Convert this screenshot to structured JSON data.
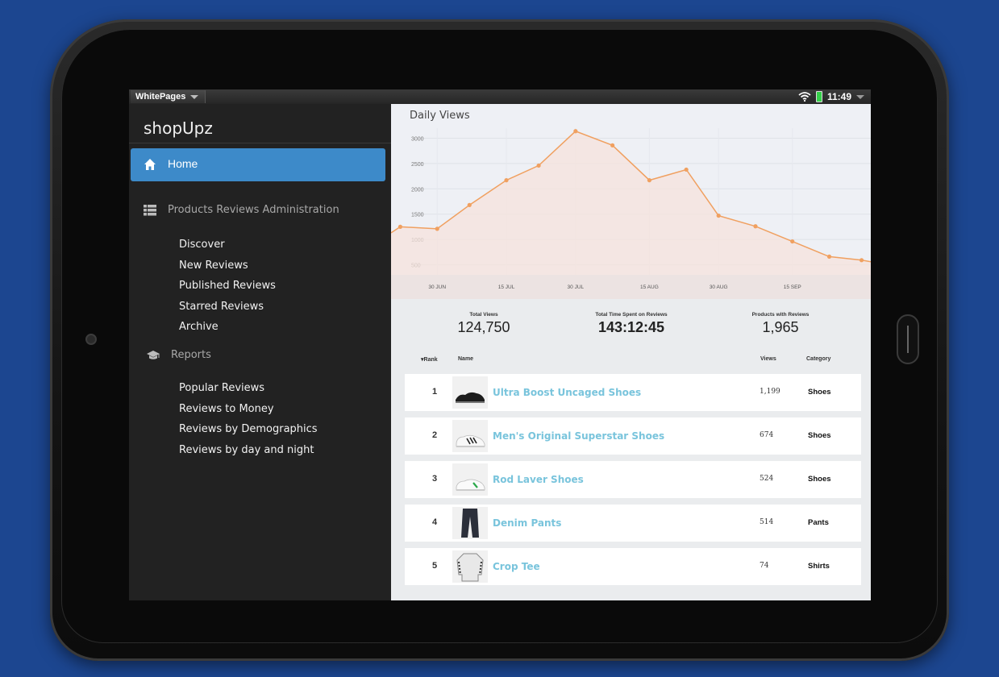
{
  "statusbar": {
    "app_name": "WhitePages",
    "time": "11:49"
  },
  "sidebar": {
    "brand": "shopUpz",
    "home_label": "Home",
    "sections": [
      {
        "title": "Products Reviews Administration",
        "icon": "list-icon",
        "items": [
          "Discover",
          "New Reviews",
          "Published Reviews",
          "Starred Reviews",
          "Archive"
        ]
      },
      {
        "title": "Reports",
        "icon": "graduation-cap-icon",
        "items": [
          "Popular Reviews",
          "Reviews to Money",
          "Reviews by Demographics",
          "Reviews by day and night"
        ]
      }
    ]
  },
  "chart_data": {
    "type": "area",
    "title": "Daily Views",
    "xlabel": "",
    "ylabel": "",
    "x_ticks": [
      "30 JUN",
      "15 JUL",
      "30 JUL",
      "15 AUG",
      "30 AUG",
      "15 SEP"
    ],
    "y_ticks": [
      500,
      1000,
      1500,
      2000,
      2500,
      3000
    ],
    "ylim": [
      300,
      3200
    ],
    "x": [
      "2015-06-22",
      "2015-06-30",
      "2015-07-07",
      "2015-07-15",
      "2015-07-22",
      "2015-07-30",
      "2015-08-07",
      "2015-08-15",
      "2015-08-23",
      "2015-08-30",
      "2015-09-07",
      "2015-09-15",
      "2015-09-23",
      "2015-09-30"
    ],
    "values": [
      1250,
      1210,
      1680,
      2170,
      2460,
      3140,
      2860,
      2170,
      2380,
      1470,
      1260,
      960,
      660,
      590
    ],
    "grid": true,
    "color": "#f0a060"
  },
  "stats": {
    "total_views_label": "Total Views",
    "total_views": "124,750",
    "time_label": "Total Time Spent on Reviews",
    "time_value": "143:12:45",
    "products_label": "Products with Reviews",
    "products_value": "1,965"
  },
  "table": {
    "headers": {
      "rank": "Rank",
      "name": "Name",
      "views": "Views",
      "category": "Category"
    },
    "rows": [
      {
        "rank": "1",
        "name": "Ultra Boost Uncaged Shoes",
        "views": "1,199",
        "category": "Shoes",
        "thumb": "black-shoe-image"
      },
      {
        "rank": "2",
        "name": "Men's Original Superstar Shoes",
        "views": "674",
        "category": "Shoes",
        "thumb": "white-shoe-image"
      },
      {
        "rank": "3",
        "name": "Rod Laver Shoes",
        "views": "524",
        "category": "Shoes",
        "thumb": "green-white-shoe-image"
      },
      {
        "rank": "4",
        "name": "Denim Pants",
        "views": "514",
        "category": "Pants",
        "thumb": "pants-image"
      },
      {
        "rank": "5",
        "name": "Crop Tee",
        "views": "74",
        "category": "Shirts",
        "thumb": "tee-image"
      }
    ]
  }
}
